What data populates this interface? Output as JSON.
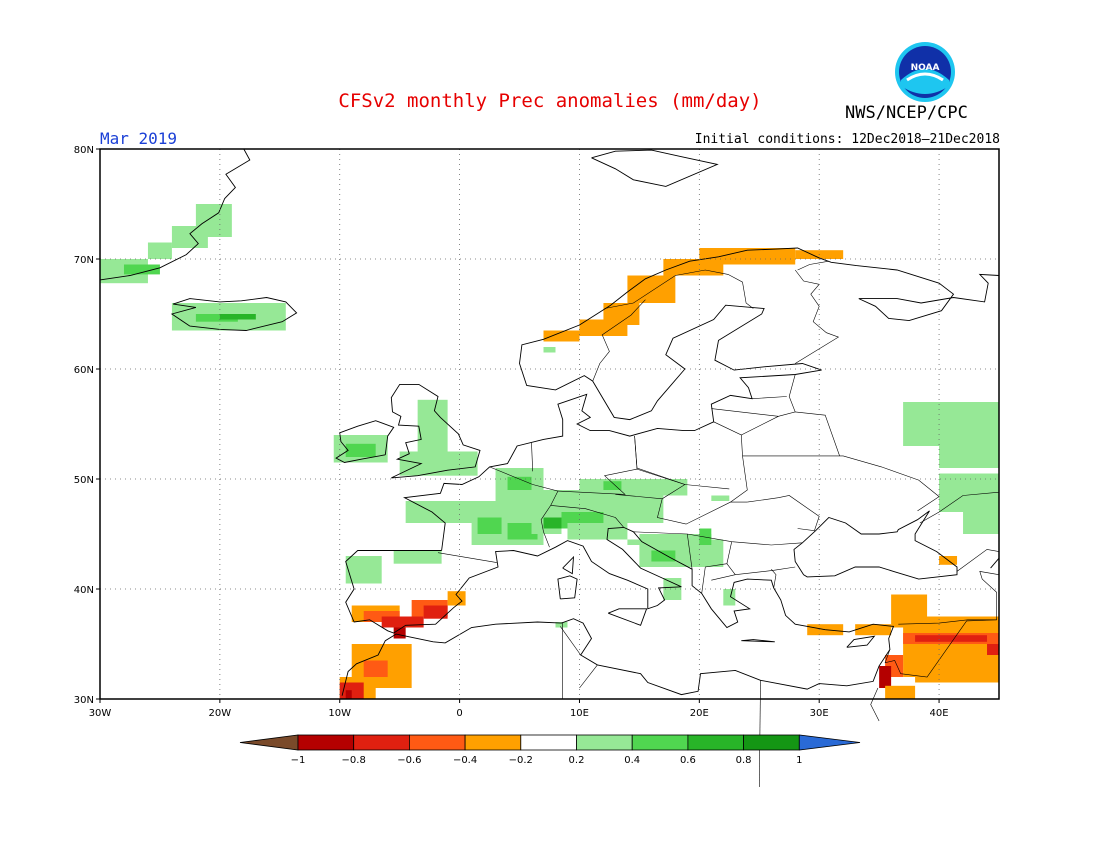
{
  "header": {
    "title": "CFSv2 monthly Prec anomalies (mm/day)",
    "org": "NWS/NCEP/CPC",
    "logo_text": "NOAA",
    "month": "Mar 2019",
    "initial_conditions": "Initial conditions: 12Dec2018–21Dec2018"
  },
  "map": {
    "lon_range": [
      -30,
      45
    ],
    "lat_range": [
      30,
      80
    ],
    "lon_ticks": [
      "30W",
      "20W",
      "10W",
      "0",
      "10E",
      "20E",
      "30E",
      "40E"
    ],
    "lat_ticks": [
      "80N",
      "70N",
      "60N",
      "50N",
      "40N",
      "30N"
    ],
    "gridlines": "dotted",
    "region": "Europe"
  },
  "colorbar": {
    "labels": [
      "−1",
      "−0.8",
      "−0.6",
      "−0.4",
      "−0.2",
      "0.2",
      "0.4",
      "0.6",
      "0.8",
      "1"
    ],
    "colors": [
      "#7a4a2a",
      "#b40000",
      "#e02010",
      "#ff5a14",
      "#ffa000",
      "#ffffff",
      "#96e896",
      "#50d650",
      "#28b428",
      "#149614",
      "#2a6ad6"
    ]
  },
  "anomaly_colors": {
    "light_green": "#96e896",
    "green": "#50d650",
    "dark_green": "#28b428",
    "orange": "#ffa000",
    "red_orange": "#ff5a14",
    "red": "#e02010",
    "dark_red": "#b40000"
  }
}
